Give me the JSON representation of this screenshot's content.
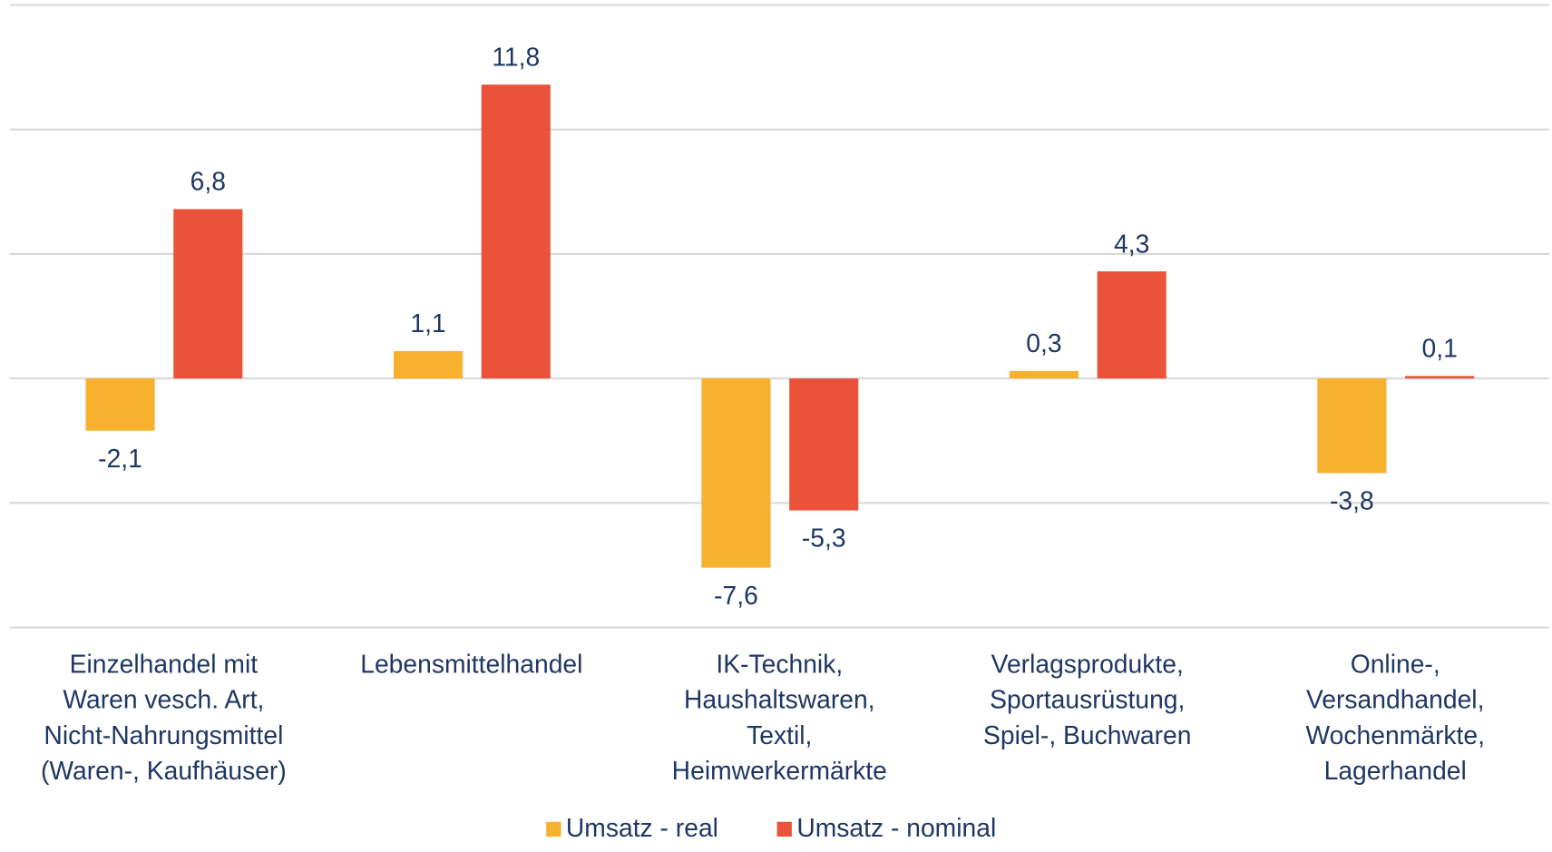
{
  "chart_data": {
    "type": "bar",
    "categories": [
      "Einzelhandel mit\nWaren vesch. Art,\nNicht-Nahrungsmittel\n(Waren-, Kaufhäuser)",
      "Lebensmittelhandel",
      "IK-Technik,\nHaushaltswaren,\nTextil,\nHeimwerkermärkte",
      "Verlagsprodukte,\nSportausrüstung,\nSpiel-, Buchwaren",
      "Online-,\nVersandhandel,\nWochenmärkte,\nLagerhandel"
    ],
    "series": [
      {
        "name": "Umsatz - real",
        "color": "#f7b12e",
        "values": [
          -2.1,
          1.1,
          -7.6,
          0.3,
          -3.8
        ],
        "value_labels": [
          "-2,1",
          "1,1",
          "-7,6",
          "0,3",
          "-3,8"
        ]
      },
      {
        "name": "Umsatz - nominal",
        "color": "#ea523a",
        "values": [
          6.8,
          11.8,
          -5.3,
          4.3,
          0.1
        ],
        "value_labels": [
          "6,8",
          "11,8",
          "-5,3",
          "4,3",
          "0,1"
        ]
      }
    ],
    "ylim": [
      -10,
      15
    ],
    "yticks": [
      -10,
      -5,
      0,
      5,
      10,
      15
    ],
    "grid": true,
    "legend": "bottom"
  }
}
